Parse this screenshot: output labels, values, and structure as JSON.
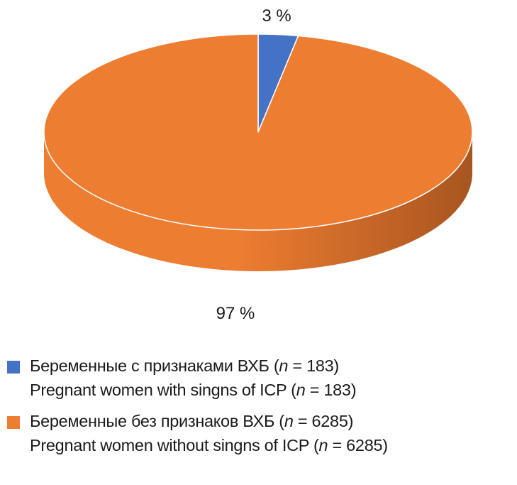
{
  "chart_data": {
    "type": "pie",
    "style": "3d",
    "title": "",
    "slices": [
      {
        "label_ru": "Беременные с признаками ВХБ",
        "label_en": "Pregnant women with singns of ICP",
        "n_text": "(n = 183)",
        "n": 183,
        "value": 3,
        "value_label": "3 %",
        "color": "#4472C4",
        "side_color": "#2e4f8a"
      },
      {
        "label_ru": "Беременные без признаков ВХБ",
        "label_en": "Pregnant women without singns of ICP",
        "n_text": "(n = 6285)",
        "n": 6285,
        "value": 97,
        "value_label": "97 %",
        "color": "#ED7D31",
        "side_color": "#a85520"
      }
    ],
    "legend": {
      "position": "bottom"
    },
    "grid": false
  }
}
